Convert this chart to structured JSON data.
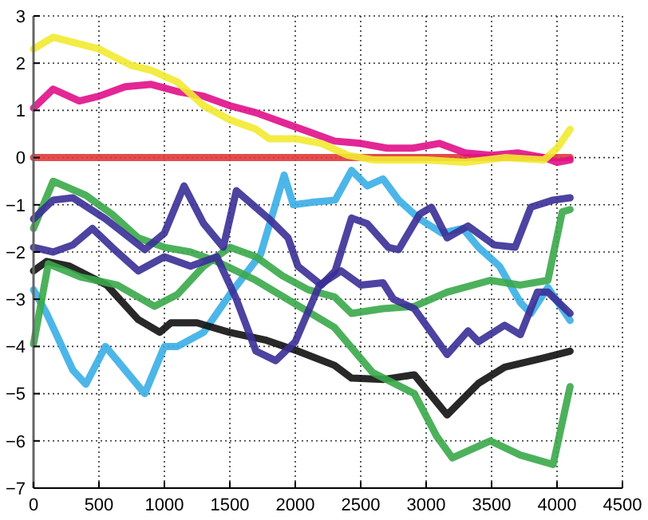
{
  "chart_data": {
    "type": "line",
    "xlim": [
      0,
      4500
    ],
    "ylim": [
      -7,
      3
    ],
    "xticks": [
      0,
      500,
      1000,
      1500,
      2000,
      2500,
      3000,
      3500,
      4000,
      4500
    ],
    "yticks": [
      -7,
      -6,
      -5,
      -4,
      -3,
      -2,
      -1,
      0,
      1,
      2,
      3
    ],
    "grid": true,
    "marker": "none",
    "line_style": "solid",
    "series": [
      {
        "color": "#e03a3a",
        "x": [
          0,
          1000,
          2000,
          3000,
          4100
        ],
        "values": [
          0,
          0,
          0,
          0,
          0
        ]
      },
      {
        "color": "#e0108a",
        "x": [
          0,
          150,
          350,
          500,
          700,
          900,
          1100,
          1300,
          1500,
          1700,
          1900,
          2100,
          2300,
          2500,
          2700,
          2900,
          3100,
          3300,
          3500,
          3700,
          3900,
          4000,
          4100
        ],
        "values": [
          1.05,
          1.45,
          1.2,
          1.3,
          1.5,
          1.55,
          1.4,
          1.3,
          1.1,
          0.95,
          0.75,
          0.55,
          0.35,
          0.3,
          0.2,
          0.2,
          0.3,
          0.1,
          0.05,
          0.1,
          0,
          -0.1,
          -0.05
        ]
      },
      {
        "color": "#f2ea30",
        "x": [
          0,
          150,
          500,
          750,
          900,
          1100,
          1300,
          1500,
          1700,
          1800,
          2000,
          2200,
          2400,
          2600,
          3000,
          3300,
          3600,
          3900,
          4000,
          4100
        ],
        "values": [
          2.3,
          2.55,
          2.3,
          1.95,
          1.85,
          1.6,
          1.1,
          0.8,
          0.6,
          0.4,
          0.4,
          0.3,
          0.05,
          -0.05,
          -0.05,
          -0.1,
          0,
          -0.05,
          0.2,
          0.6
        ]
      },
      {
        "color": "#3aaee6",
        "x": [
          0,
          100,
          300,
          400,
          550,
          700,
          850,
          1000,
          1100,
          1300,
          1500,
          1735,
          1915,
          1985,
          2120,
          2305,
          2430,
          2550,
          2670,
          2790,
          2950,
          3120,
          3280,
          3400,
          3560,
          3720,
          3800,
          3930,
          4100
        ],
        "values": [
          -2.8,
          -3.3,
          -4.5,
          -4.8,
          -4,
          -4.5,
          -5,
          -4,
          -4,
          -3.7,
          -2.9,
          -2.05,
          -0.37,
          -1,
          -0.95,
          -0.9,
          -0.27,
          -0.6,
          -0.45,
          -0.9,
          -1.3,
          -1.6,
          -1.5,
          -1.9,
          -2.3,
          -3.07,
          -3.3,
          -2.75,
          -3.45
        ]
      },
      {
        "color": "#111111",
        "x": [
          0,
          100,
          275,
          560,
          800,
          965,
          1050,
          1250,
          1495,
          1780,
          2020,
          2300,
          2430,
          2670,
          2910,
          3160,
          3400,
          3600,
          3890,
          4100
        ],
        "values": [
          -2.4,
          -2.2,
          -2.3,
          -2.7,
          -3.43,
          -3.7,
          -3.5,
          -3.5,
          -3.7,
          -3.87,
          -4.1,
          -4.4,
          -4.67,
          -4.7,
          -4.6,
          -5.45,
          -4.78,
          -4.44,
          -4.25,
          -4.1
        ]
      },
      {
        "color": "#3aa84a",
        "x": [
          0,
          150,
          400,
          600,
          800,
          1000,
          1200,
          1400,
          1700,
          2000,
          2300,
          2590,
          2910,
          3080,
          3200,
          3490,
          3720,
          3970,
          4100
        ],
        "values": [
          -1.5,
          -0.5,
          -0.8,
          -1.2,
          -1.7,
          -1.9,
          -2,
          -2.2,
          -2.6,
          -3.1,
          -3.6,
          -4.55,
          -5,
          -5.9,
          -6.36,
          -6,
          -6.3,
          -6.5,
          -4.85
        ]
      },
      {
        "color": "#3aa84a",
        "x": [
          0,
          113,
          360,
          640,
          925,
          1100,
          1300,
          1500,
          1700,
          1900,
          2100,
          2300,
          2430,
          2670,
          2910,
          3160,
          3490,
          3720,
          3930,
          4040,
          4100
        ],
        "values": [
          -3.95,
          -2.25,
          -2.53,
          -2.7,
          -3.15,
          -2.9,
          -2.3,
          -1.9,
          -2.1,
          -2.5,
          -2.8,
          -2.95,
          -3.3,
          -3.2,
          -3.15,
          -2.85,
          -2.6,
          -2.7,
          -2.6,
          -1.15,
          -1.1
        ]
      },
      {
        "color": "#3a2f96",
        "x": [
          0,
          150,
          300,
          550,
          850,
          1000,
          1150,
          1300,
          1450,
          1550,
          1800,
          1945,
          2020,
          2200,
          2305,
          2430,
          2550,
          2710,
          2790,
          2950,
          3040,
          3160,
          3320,
          3520,
          3680,
          3800,
          3970,
          4100
        ],
        "values": [
          -1.3,
          -0.9,
          -0.85,
          -1.3,
          -1.95,
          -1.6,
          -0.6,
          -1.4,
          -1.9,
          -0.7,
          -1.3,
          -1.7,
          -2.3,
          -2.7,
          -2.4,
          -1.28,
          -1.4,
          -1.9,
          -1.95,
          -1.2,
          -1.05,
          -1.7,
          -1.45,
          -1.85,
          -1.9,
          -1.05,
          -0.9,
          -0.85
        ]
      },
      {
        "color": "#3a2f96",
        "x": [
          0,
          150,
          300,
          450,
          600,
          800,
          1000,
          1200,
          1400,
          1550,
          1700,
          1850,
          2000,
          2185,
          2350,
          2500,
          2670,
          2750,
          2910,
          3160,
          3320,
          3400,
          3600,
          3720,
          3850,
          3930,
          4100
        ],
        "values": [
          -1.9,
          -2,
          -1.85,
          -1.5,
          -1.9,
          -2.4,
          -2.1,
          -2.3,
          -2.1,
          -3,
          -4.1,
          -4.3,
          -3.9,
          -2.7,
          -2.4,
          -2.7,
          -2.65,
          -3,
          -3.2,
          -4.17,
          -3.67,
          -3.9,
          -3.55,
          -3.75,
          -2.85,
          -2.85,
          -3.3
        ]
      }
    ]
  }
}
